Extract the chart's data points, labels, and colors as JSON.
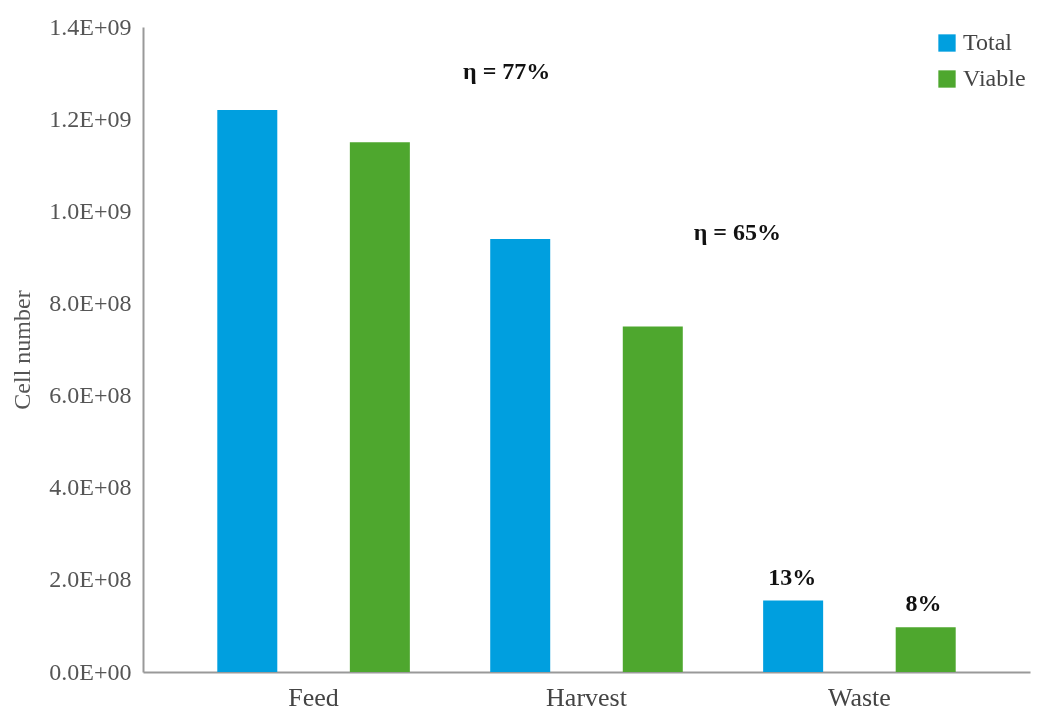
{
  "chart_data": {
    "type": "bar",
    "ylabel": "Cell number",
    "categories": [
      "Feed",
      "Harvest",
      "Waste"
    ],
    "series": [
      {
        "name": "Total",
        "color": "#009fdf",
        "values": [
          1220000000.0,
          940000000.0,
          155000000.0
        ]
      },
      {
        "name": "Viable",
        "color": "#4ea72e",
        "values": [
          1150000000.0,
          750000000.0,
          97000000.0
        ]
      }
    ],
    "ylim": [
      0,
      1400000000.0
    ],
    "yticks": [
      {
        "value": 0,
        "label": "0.0E+00"
      },
      {
        "value": 200000000.0,
        "label": "2.0E+08"
      },
      {
        "value": 400000000.0,
        "label": "4.0E+08"
      },
      {
        "value": 600000000.0,
        "label": "6.0E+08"
      },
      {
        "value": 800000000.0,
        "label": "8.0E+08"
      },
      {
        "value": 1000000000.0,
        "label": "1.0E+09"
      },
      {
        "value": 1200000000.0,
        "label": "1.2E+09"
      },
      {
        "value": 1400000000.0,
        "label": "1.4E+09"
      }
    ],
    "annotations": [
      "η = 77%",
      "η = 65%",
      "13%",
      "8%"
    ],
    "grid": false,
    "legend": "top right"
  }
}
